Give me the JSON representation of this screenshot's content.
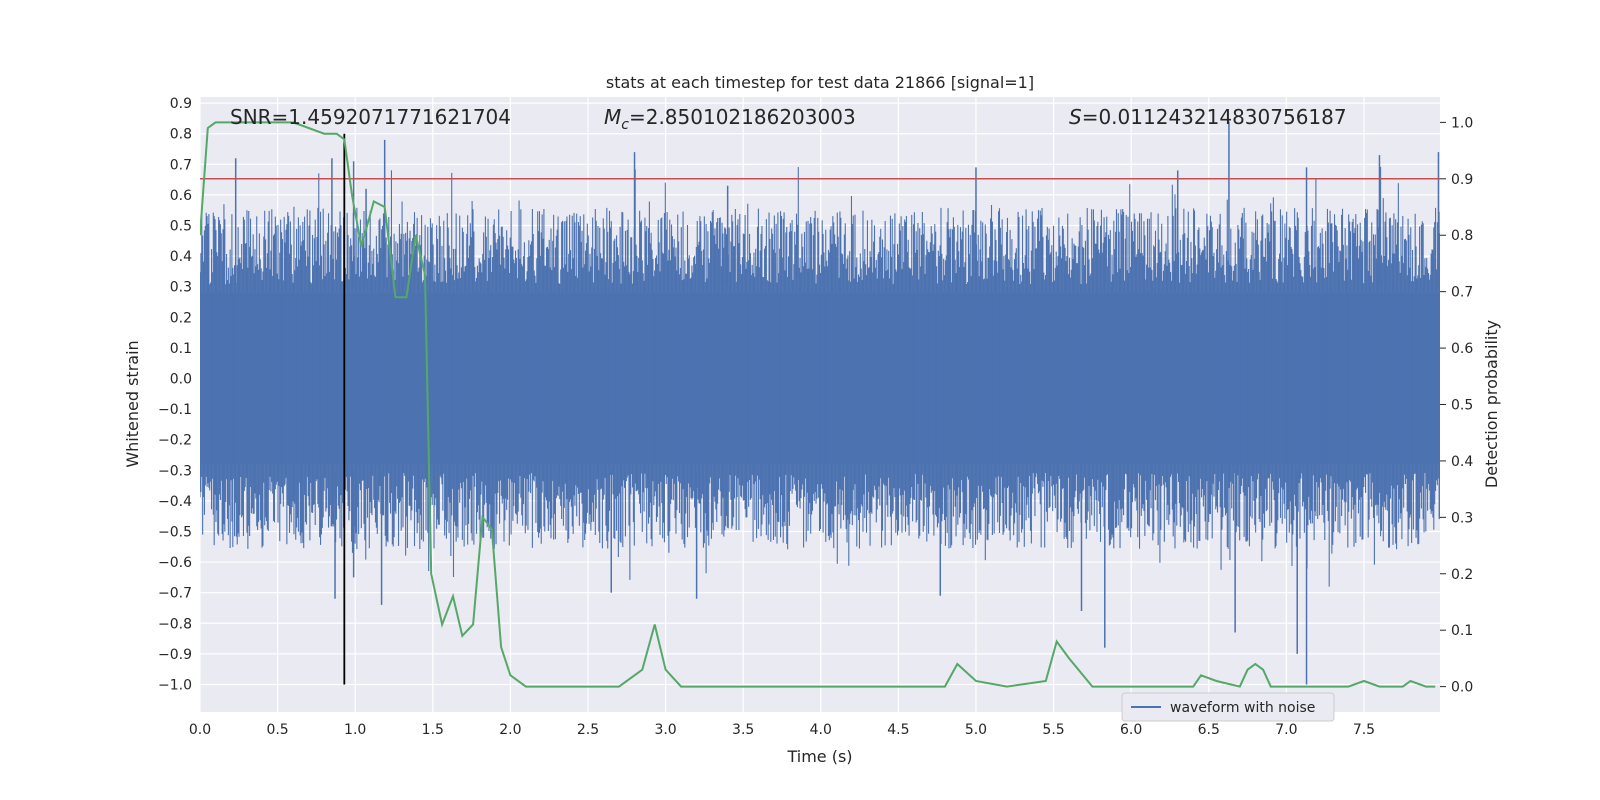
{
  "chart_data": {
    "type": "line",
    "title": "stats at each timestep for test data 21866 [signal=1]",
    "xlabel": "Time (s)",
    "ylabel_left": "Whitened strain",
    "ylabel_right": "Detection probability",
    "xlim": [
      0.0,
      7.99
    ],
    "ylim_left": [
      -1.09,
      0.92
    ],
    "ylim_right": [
      -0.045,
      1.045
    ],
    "grid": true,
    "x_ticks": [
      "0.0",
      "0.5",
      "1.0",
      "1.5",
      "2.0",
      "2.5",
      "3.0",
      "3.5",
      "4.0",
      "4.5",
      "5.0",
      "5.5",
      "6.0",
      "6.5",
      "7.0",
      "7.5"
    ],
    "x_tick_values": [
      0.0,
      0.5,
      1.0,
      1.5,
      2.0,
      2.5,
      3.0,
      3.5,
      4.0,
      4.5,
      5.0,
      5.5,
      6.0,
      6.5,
      7.0,
      7.5
    ],
    "y_left_ticks": [
      "0.9",
      "0.8",
      "0.7",
      "0.6",
      "0.5",
      "0.4",
      "0.3",
      "0.2",
      "0.1",
      "0.0",
      "−0.1",
      "−0.2",
      "−0.3",
      "−0.4",
      "−0.5",
      "−0.6",
      "−0.7",
      "−0.8",
      "−0.9",
      "−1.0"
    ],
    "y_left_tick_values": [
      0.9,
      0.8,
      0.7,
      0.6,
      0.5,
      0.4,
      0.3,
      0.2,
      0.1,
      0.0,
      -0.1,
      -0.2,
      -0.3,
      -0.4,
      -0.5,
      -0.6,
      -0.7,
      -0.8,
      -0.9,
      -1.0
    ],
    "y_right_ticks": [
      "1.0",
      "0.9",
      "0.8",
      "0.7",
      "0.6",
      "0.5",
      "0.4",
      "0.3",
      "0.2",
      "0.1",
      "0.0"
    ],
    "y_right_tick_values": [
      1.0,
      0.9,
      0.8,
      0.7,
      0.6,
      0.5,
      0.4,
      0.3,
      0.2,
      0.1,
      0.0
    ],
    "annotations": {
      "snr": "SNR=1.4592071771621704",
      "mc_symbol": "M",
      "mc_subscript": "c",
      "mc_value": "=2.850102186203003",
      "s_symbol": "S",
      "s_value": "=0.011243214830756187"
    },
    "threshold_probability": 0.9,
    "marker_time": 0.93,
    "marker_strain_range": [
      -1.0,
      0.8
    ],
    "legend": {
      "placement": "lower-right",
      "entries": [
        "waveform with noise"
      ]
    },
    "colors": {
      "waveform": "#4c72b0",
      "probability": "#55a868",
      "threshold": "#c44e52",
      "marker": "#000000",
      "background": "#eaeaf2"
    },
    "series": [
      {
        "name": "waveform with noise",
        "axis": "left",
        "x_range": [
          0.0,
          7.99
        ],
        "envelope_mean": 0.44,
        "spikes_top": [
          [
            0.23,
            0.72
          ],
          [
            0.85,
            0.72
          ],
          [
            0.99,
            0.71
          ],
          [
            1.07,
            0.62
          ],
          [
            1.19,
            0.78
          ],
          [
            2.8,
            0.74
          ],
          [
            3.4,
            0.63
          ],
          [
            5.0,
            0.69
          ],
          [
            6.3,
            0.68
          ],
          [
            6.63,
            0.84
          ],
          [
            7.13,
            0.69
          ],
          [
            7.6,
            0.73
          ],
          [
            7.98,
            0.74
          ]
        ],
        "spikes_bottom": [
          [
            0.87,
            -0.72
          ],
          [
            0.99,
            -0.65
          ],
          [
            1.17,
            -0.74
          ],
          [
            2.65,
            -0.7
          ],
          [
            3.2,
            -0.72
          ],
          [
            4.77,
            -0.71
          ],
          [
            5.68,
            -0.76
          ],
          [
            5.83,
            -0.88
          ],
          [
            6.67,
            -0.83
          ],
          [
            7.07,
            -0.9
          ],
          [
            7.13,
            -1.0
          ]
        ]
      },
      {
        "name": "detection probability",
        "axis": "right",
        "x": [
          0.0,
          0.05,
          0.1,
          0.2,
          0.3,
          0.4,
          0.5,
          0.6,
          0.7,
          0.8,
          0.88,
          0.93,
          0.98,
          1.04,
          1.12,
          1.19,
          1.26,
          1.33,
          1.39,
          1.45,
          1.49,
          1.56,
          1.63,
          1.69,
          1.76,
          1.82,
          1.88,
          1.94,
          2.0,
          2.1,
          2.3,
          2.5,
          2.7,
          2.85,
          2.93,
          3.0,
          3.1,
          3.2,
          3.4,
          3.6,
          3.8,
          4.0,
          4.2,
          4.4,
          4.6,
          4.8,
          4.88,
          5.0,
          5.2,
          5.45,
          5.52,
          5.6,
          5.75,
          5.9,
          6.2,
          6.4,
          6.45,
          6.55,
          6.7,
          6.75,
          6.8,
          6.85,
          6.9,
          7.0,
          7.2,
          7.4,
          7.5,
          7.6,
          7.75,
          7.8,
          7.9,
          7.96
        ],
        "y": [
          0.8,
          0.99,
          1.0,
          1.0,
          1.0,
          1.0,
          1.0,
          1.0,
          0.99,
          0.98,
          0.98,
          0.97,
          0.87,
          0.78,
          0.86,
          0.85,
          0.69,
          0.69,
          0.8,
          0.73,
          0.2,
          0.11,
          0.16,
          0.09,
          0.11,
          0.3,
          0.28,
          0.07,
          0.02,
          0.0,
          0.0,
          0.0,
          0.0,
          0.03,
          0.11,
          0.03,
          0.0,
          0.0,
          0.0,
          0.0,
          0.0,
          0.0,
          0.0,
          0.0,
          0.0,
          0.0,
          0.04,
          0.01,
          0.0,
          0.01,
          0.08,
          0.05,
          0.0,
          0.0,
          0.0,
          0.0,
          0.02,
          0.01,
          0.0,
          0.03,
          0.04,
          0.03,
          0.0,
          0.0,
          0.0,
          0.0,
          0.01,
          0.0,
          0.0,
          0.01,
          0.0,
          0.0
        ]
      }
    ]
  }
}
